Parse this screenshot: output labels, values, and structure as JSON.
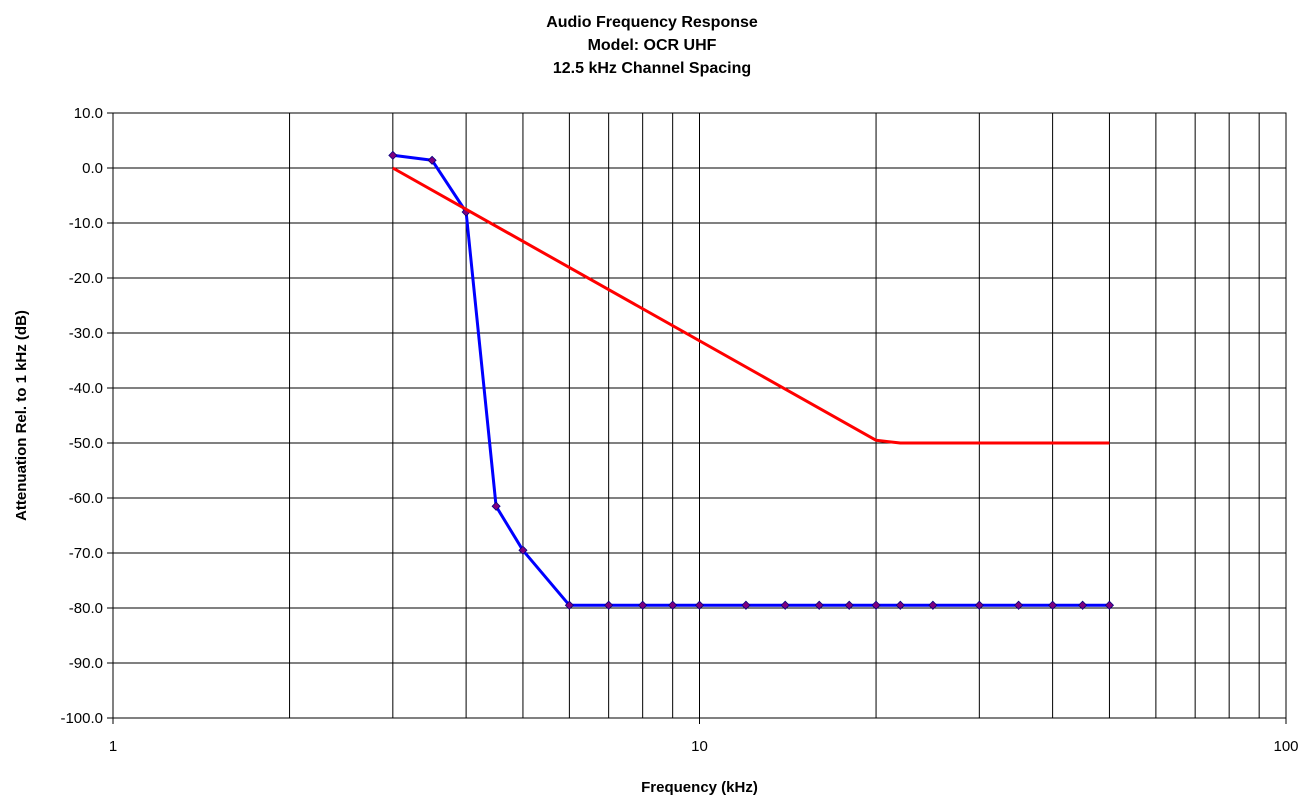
{
  "chart_data": {
    "type": "line",
    "title": [
      "Audio Frequency Response",
      "Model: OCR UHF",
      "12.5 kHz Channel Spacing"
    ],
    "xlabel": "Frequency (kHz)",
    "ylabel": "Attenuation Rel. to 1 kHz (dB)",
    "xscale": "log",
    "xlim": [
      1,
      100
    ],
    "ylim": [
      -100,
      10
    ],
    "grid": true,
    "legend": "none",
    "x_tick_labels": [
      "1",
      "10",
      "100"
    ],
    "y_tick_labels": [
      "10.0",
      "0.0",
      "-10.0",
      "-20.0",
      "-30.0",
      "-40.0",
      "-50.0",
      "-60.0",
      "-70.0",
      "-80.0",
      "-90.0",
      "-100.0"
    ],
    "series": [
      {
        "color": "#0000ff",
        "markers": true,
        "x": [
          3,
          3.5,
          4,
          4.5,
          5,
          6,
          7,
          8,
          9,
          10,
          12,
          14,
          16,
          18,
          20,
          22,
          25,
          30,
          35,
          40,
          45,
          50
        ],
        "y": [
          2.3,
          1.4,
          -8,
          -61.5,
          -69.5,
          -79.5,
          -79.5,
          -79.5,
          -79.5,
          -79.5,
          -79.5,
          -79.5,
          -79.5,
          -79.5,
          -79.5,
          -79.5,
          -79.5,
          -79.5,
          -79.5,
          -79.5,
          -79.5,
          -79.5
        ]
      },
      {
        "color": "#ff0000",
        "markers": false,
        "x": [
          3,
          20,
          22,
          50
        ],
        "y": [
          0,
          -49.5,
          -50,
          -50
        ]
      }
    ]
  }
}
